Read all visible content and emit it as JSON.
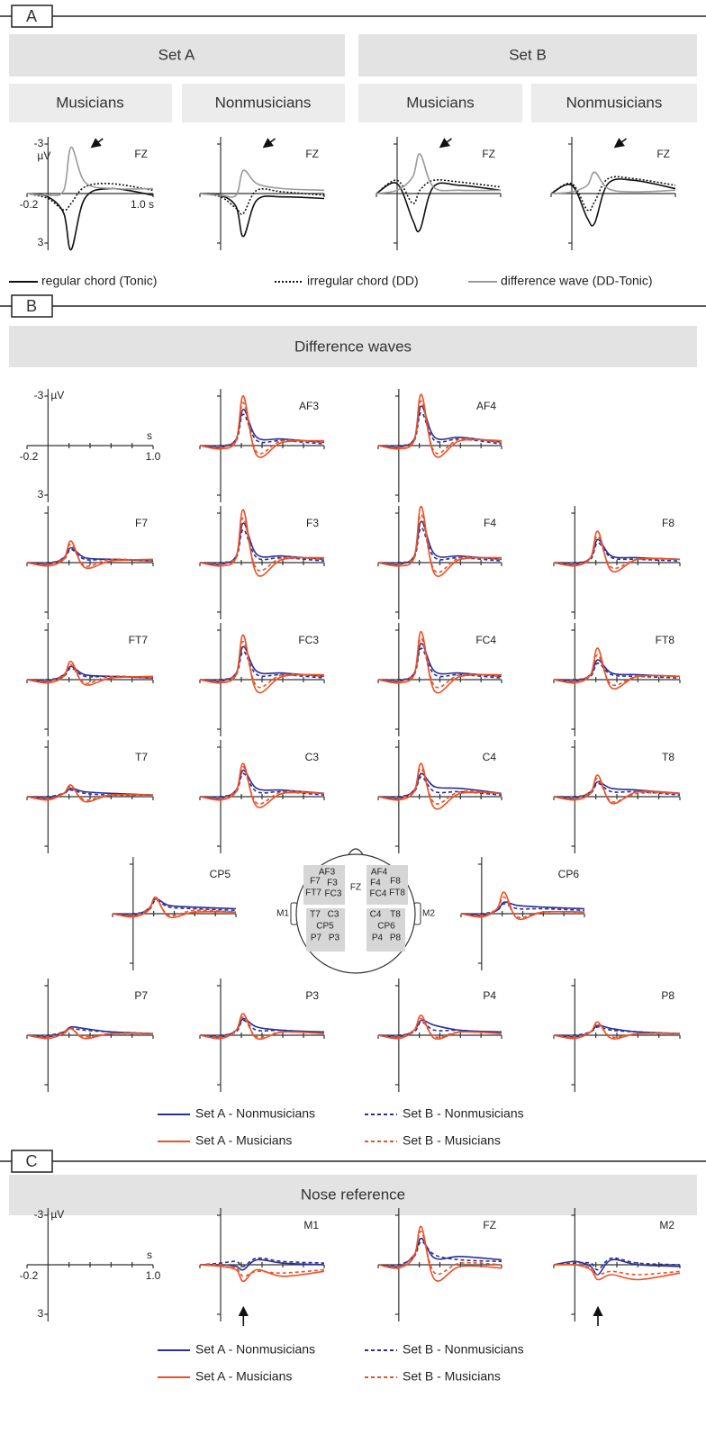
{
  "panel_a": {
    "label": "A",
    "set_titles": [
      "Set A",
      "Set B"
    ],
    "group_titles": [
      "Musicians",
      "Nonmusicians",
      "Musicians",
      "Nonmusicians"
    ],
    "x": [
      -0.2,
      0,
      0.15,
      0.22,
      0.35,
      0.6,
      1.0
    ],
    "xlim": [
      -0.2,
      1.0
    ],
    "ylim": [
      -3,
      3
    ],
    "xticks": [
      -0.2,
      {
        "value": 1.0,
        "label": "1.0 s"
      }
    ],
    "yticks": [
      -3,
      3
    ],
    "y_unit": "µV",
    "series": [
      {
        "name": "regular chord (Tonic)",
        "color": "#111111",
        "dash": "solid"
      },
      {
        "name": "irregular chord (DD)",
        "color": "#111111",
        "dash": "dotted"
      },
      {
        "name": "difference wave (DD-Tonic)",
        "color": "#9a9a9a",
        "dash": "solid"
      }
    ],
    "plots": [
      {
        "label": "FZ",
        "values": [
          [
            0,
            0.2,
            1.2,
            3.4,
            0.3,
            -0.3,
            0.1
          ],
          [
            0,
            0.3,
            1.0,
            0.6,
            -0.4,
            -0.6,
            -0.2
          ],
          [
            0,
            0.1,
            -0.2,
            -2.8,
            -0.7,
            -0.3,
            -0.3
          ]
        ]
      },
      {
        "label": "FZ",
        "values": [
          [
            0,
            0.1,
            0.8,
            2.6,
            0.4,
            0.2,
            0.3
          ],
          [
            0,
            0.2,
            0.9,
            1.2,
            -0.2,
            -0.1,
            0.1
          ],
          [
            0,
            0.1,
            0.1,
            -1.4,
            -0.6,
            -0.3,
            -0.2
          ]
        ]
      },
      {
        "label": "FZ",
        "values": [
          [
            0,
            -0.6,
            1.6,
            2.2,
            -0.4,
            -0.5,
            -0.2
          ],
          [
            0,
            -0.8,
            0.6,
            -0.2,
            -0.8,
            -0.7,
            -0.4
          ],
          [
            0,
            -0.2,
            -1.0,
            -2.4,
            -0.4,
            -0.2,
            -0.2
          ]
        ]
      },
      {
        "label": "FZ",
        "values": [
          [
            0,
            -0.5,
            1.5,
            1.8,
            -0.6,
            -0.8,
            -0.3
          ],
          [
            0,
            -0.6,
            1.0,
            0.5,
            -0.9,
            -0.9,
            -0.5
          ],
          [
            0,
            -0.1,
            -0.5,
            -1.3,
            -0.3,
            -0.1,
            -0.2
          ]
        ]
      }
    ]
  },
  "panel_b": {
    "label": "B",
    "title": "Difference waves",
    "x": [
      -0.2,
      0,
      0.15,
      0.22,
      0.35,
      0.6,
      1.0
    ],
    "xlim": [
      -0.2,
      1.0
    ],
    "ylim": [
      -3,
      3
    ],
    "xticks": [
      -0.2,
      {
        "value": 1.0,
        "label": "1.0"
      }
    ],
    "minor_xticks": [
      0.2,
      0.4,
      0.6,
      0.8
    ],
    "yticks": [
      -3,
      3
    ],
    "y_unit": "µV",
    "x_unit": "s",
    "series": [
      {
        "name": "Set A - Nonmusicians",
        "color": "#2a2f92",
        "dash": "solid"
      },
      {
        "name": "Set B - Nonmusicians",
        "color": "#2a2f92",
        "dash": "dashed"
      },
      {
        "name": "Set A - Musicians",
        "color": "#ec5128",
        "dash": "solid"
      },
      {
        "name": "Set B - Musicians",
        "color": "#ec5128",
        "dash": "dashed"
      }
    ],
    "plots": [
      {
        "label": "AF3",
        "values": [
          [
            0,
            0.1,
            -0.4,
            -2.2,
            -0.5,
            -0.4,
            -0.2
          ],
          [
            0,
            0,
            -0.3,
            -1.9,
            -0.3,
            -0.3,
            -0.1
          ],
          [
            0,
            0.2,
            -0.3,
            -3.0,
            0.6,
            -0.2,
            -0.3
          ],
          [
            0,
            0.1,
            -0.4,
            -2.6,
            0.4,
            -0.3,
            -0.2
          ]
        ]
      },
      {
        "label": "AF4",
        "values": [
          [
            0,
            0.1,
            -0.4,
            -2.4,
            -0.5,
            -0.5,
            -0.2
          ],
          [
            0,
            0,
            -0.3,
            -2.0,
            -0.3,
            -0.4,
            -0.1
          ],
          [
            0,
            0.2,
            -0.3,
            -3.1,
            0.6,
            -0.3,
            -0.3
          ],
          [
            0,
            0.1,
            -0.4,
            -2.7,
            0.4,
            -0.4,
            -0.2
          ]
        ]
      },
      {
        "label": "F7",
        "values": [
          [
            0,
            0.1,
            -0.3,
            -0.9,
            -0.3,
            -0.2,
            -0.1
          ],
          [
            0,
            0,
            -0.2,
            -0.8,
            -0.2,
            -0.2,
            -0.1
          ],
          [
            0,
            0.2,
            -0.2,
            -1.3,
            0.3,
            -0.1,
            -0.2
          ],
          [
            0,
            0.1,
            -0.3,
            -1.1,
            0.2,
            -0.2,
            -0.1
          ]
        ]
      },
      {
        "label": "F3",
        "values": [
          [
            0,
            0.1,
            -0.4,
            -2.4,
            -0.5,
            -0.4,
            -0.2
          ],
          [
            0,
            0,
            -0.3,
            -2.0,
            -0.3,
            -0.3,
            -0.1
          ],
          [
            0,
            0.2,
            -0.3,
            -3.2,
            0.7,
            -0.2,
            -0.3
          ],
          [
            0,
            0.1,
            -0.4,
            -2.7,
            0.4,
            -0.3,
            -0.2
          ]
        ]
      },
      {
        "label": "F4",
        "values": [
          [
            0,
            0.1,
            -0.4,
            -2.5,
            -0.5,
            -0.4,
            -0.2
          ],
          [
            0,
            0,
            -0.3,
            -2.1,
            -0.3,
            -0.3,
            -0.1
          ],
          [
            0,
            0.2,
            -0.3,
            -3.4,
            0.7,
            -0.2,
            -0.3
          ],
          [
            0,
            0.1,
            -0.4,
            -2.9,
            0.5,
            -0.3,
            -0.2
          ]
        ]
      },
      {
        "label": "F8",
        "values": [
          [
            0,
            0.1,
            -0.3,
            -1.4,
            -0.4,
            -0.3,
            -0.2
          ],
          [
            0,
            0,
            -0.2,
            -1.2,
            -0.3,
            -0.2,
            -0.1
          ],
          [
            0,
            0.2,
            -0.3,
            -1.9,
            0.5,
            -0.2,
            -0.2
          ],
          [
            0,
            0.1,
            -0.3,
            -1.6,
            0.3,
            -0.2,
            -0.2
          ]
        ]
      },
      {
        "label": "FT7",
        "values": [
          [
            0,
            0.1,
            -0.3,
            -0.8,
            -0.3,
            -0.2,
            -0.1
          ],
          [
            0,
            0,
            -0.2,
            -0.7,
            -0.2,
            -0.2,
            -0.1
          ],
          [
            0,
            0.2,
            -0.2,
            -1.1,
            0.3,
            -0.1,
            -0.2
          ],
          [
            0,
            0.1,
            -0.3,
            -0.9,
            0.2,
            -0.2,
            -0.1
          ]
        ]
      },
      {
        "label": "FC3",
        "values": [
          [
            0,
            0.1,
            -0.4,
            -2.0,
            -0.5,
            -0.4,
            -0.2
          ],
          [
            0,
            0,
            -0.3,
            -1.7,
            -0.3,
            -0.3,
            -0.1
          ],
          [
            0,
            0.2,
            -0.3,
            -2.7,
            0.7,
            -0.2,
            -0.3
          ],
          [
            0,
            0.1,
            -0.4,
            -2.3,
            0.4,
            -0.3,
            -0.2
          ]
        ]
      },
      {
        "label": "FC4",
        "values": [
          [
            0,
            0.1,
            -0.4,
            -2.2,
            -0.5,
            -0.4,
            -0.2
          ],
          [
            0,
            0,
            -0.3,
            -1.9,
            -0.3,
            -0.3,
            -0.1
          ],
          [
            0,
            0.2,
            -0.3,
            -2.9,
            0.7,
            -0.2,
            -0.3
          ],
          [
            0,
            0.1,
            -0.4,
            -2.5,
            0.4,
            -0.3,
            -0.2
          ]
        ]
      },
      {
        "label": "FT8",
        "values": [
          [
            0,
            0.1,
            -0.3,
            -1.2,
            -0.4,
            -0.3,
            -0.2
          ],
          [
            0,
            0,
            -0.2,
            -1.0,
            -0.3,
            -0.2,
            -0.1
          ],
          [
            0,
            0.2,
            -0.3,
            -1.9,
            0.5,
            -0.2,
            -0.2
          ],
          [
            0,
            0.1,
            -0.3,
            -1.5,
            0.3,
            -0.2,
            -0.2
          ]
        ]
      },
      {
        "label": "T7",
        "values": [
          [
            0,
            0.1,
            -0.2,
            -0.5,
            -0.3,
            -0.2,
            -0.1
          ],
          [
            0,
            0,
            -0.2,
            -0.4,
            -0.2,
            -0.1,
            -0.1
          ],
          [
            0,
            0.2,
            -0.2,
            -0.7,
            0.3,
            -0.1,
            -0.1
          ],
          [
            0,
            0.1,
            -0.2,
            -0.6,
            0.2,
            -0.1,
            -0.1
          ]
        ]
      },
      {
        "label": "C3",
        "values": [
          [
            0,
            0.1,
            -0.4,
            -1.6,
            -0.5,
            -0.4,
            -0.2
          ],
          [
            0,
            0,
            -0.3,
            -1.4,
            -0.3,
            -0.3,
            -0.1
          ],
          [
            0,
            0.2,
            -0.3,
            -2.0,
            0.6,
            -0.2,
            -0.2
          ],
          [
            0,
            0.1,
            -0.4,
            -1.8,
            0.4,
            -0.3,
            -0.2
          ]
        ]
      },
      {
        "label": "C4",
        "values": [
          [
            0,
            0.1,
            -0.4,
            -1.4,
            -0.6,
            -0.5,
            -0.2
          ],
          [
            0,
            0,
            -0.3,
            -1.2,
            -0.3,
            -0.3,
            -0.1
          ],
          [
            0,
            0.2,
            -0.3,
            -2.0,
            0.7,
            -0.2,
            -0.2
          ],
          [
            0,
            0.1,
            -0.4,
            -1.7,
            0.4,
            -0.3,
            -0.2
          ]
        ]
      },
      {
        "label": "T8",
        "values": [
          [
            0,
            0.1,
            -0.3,
            -0.9,
            -0.5,
            -0.4,
            -0.2
          ],
          [
            0,
            0,
            -0.2,
            -0.8,
            -0.3,
            -0.3,
            -0.1
          ],
          [
            0,
            0.2,
            -0.2,
            -1.3,
            0.4,
            -0.3,
            -0.2
          ],
          [
            0,
            0.1,
            -0.3,
            -1.1,
            0.3,
            -0.2,
            -0.2
          ]
        ]
      },
      {
        "label": "CP5",
        "values": [
          [
            0,
            0.1,
            -0.3,
            -0.9,
            -0.5,
            -0.4,
            -0.3
          ],
          [
            0,
            0,
            -0.2,
            -0.8,
            -0.4,
            -0.3,
            -0.2
          ],
          [
            0,
            0.2,
            -0.2,
            -1.0,
            0.2,
            -0.1,
            -0.1
          ],
          [
            0,
            0.1,
            -0.3,
            -0.9,
            0.1,
            -0.2,
            -0.1
          ]
        ]
      },
      {
        "label": "CP6",
        "values": [
          [
            0,
            0.1,
            -0.2,
            -0.7,
            -0.5,
            -0.4,
            -0.3
          ],
          [
            0,
            0,
            -0.2,
            -0.6,
            -0.3,
            -0.3,
            -0.2
          ],
          [
            0,
            0.2,
            -0.3,
            -1.3,
            0.3,
            -0.1,
            -0.1
          ],
          [
            0,
            0.1,
            -0.3,
            -1.0,
            0.2,
            -0.1,
            -0.1
          ]
        ]
      },
      {
        "label": "P7",
        "values": [
          [
            0,
            0.1,
            -0.2,
            -0.5,
            -0.4,
            -0.2,
            -0.1
          ],
          [
            0,
            0,
            -0.2,
            -0.4,
            -0.3,
            -0.2,
            -0.1
          ],
          [
            0,
            0.2,
            -0.1,
            -0.4,
            0.2,
            -0.1,
            -0.1
          ],
          [
            0,
            0.1,
            -0.2,
            -0.4,
            0.1,
            -0.1,
            -0.1
          ]
        ]
      },
      {
        "label": "P3",
        "values": [
          [
            0,
            0.1,
            -0.3,
            -1.0,
            -0.5,
            -0.3,
            -0.2
          ],
          [
            0,
            0,
            -0.2,
            -0.9,
            -0.3,
            -0.3,
            -0.1
          ],
          [
            0,
            0.2,
            -0.3,
            -1.3,
            0.2,
            -0.2,
            -0.1
          ],
          [
            0,
            0.1,
            -0.3,
            -1.1,
            0.1,
            -0.2,
            -0.1
          ]
        ]
      },
      {
        "label": "P4",
        "values": [
          [
            0,
            0.1,
            -0.3,
            -0.9,
            -0.6,
            -0.3,
            -0.2
          ],
          [
            0,
            0,
            -0.2,
            -0.8,
            -0.3,
            -0.3,
            -0.1
          ],
          [
            0,
            0.2,
            -0.3,
            -1.2,
            0.2,
            -0.2,
            -0.1
          ],
          [
            0,
            0.1,
            -0.3,
            -1.0,
            0.1,
            -0.2,
            -0.1
          ]
        ]
      },
      {
        "label": "P8",
        "values": [
          [
            0,
            0.1,
            -0.2,
            -0.6,
            -0.4,
            -0.2,
            -0.1
          ],
          [
            0,
            0,
            -0.2,
            -0.5,
            -0.3,
            -0.2,
            -0.1
          ],
          [
            0,
            0.2,
            -0.2,
            -0.8,
            0.2,
            -0.1,
            -0.1
          ],
          [
            0,
            0.1,
            -0.2,
            -0.7,
            0.1,
            -0.1,
            -0.1
          ]
        ]
      }
    ],
    "head": {
      "left_labels": [
        "AF3",
        "F7",
        "F3",
        "FT7",
        "FC3",
        "T7",
        "C3",
        "CP5",
        "P7",
        "P3"
      ],
      "right_labels": [
        "AF4",
        "F4",
        "F8",
        "FC4",
        "FT8",
        "C4",
        "T8",
        "CP6",
        "P4",
        "P8"
      ],
      "center_label": "FZ",
      "mastoid_labels": [
        "M1",
        "M2"
      ]
    }
  },
  "panel_c": {
    "label": "C",
    "title": "Nose reference",
    "plots": [
      {
        "label": "M1",
        "values": [
          [
            0,
            0,
            0.1,
            0.3,
            -0.3,
            -0.1,
            0
          ],
          [
            0,
            -0.1,
            -0.2,
            0.1,
            -0.4,
            -0.2,
            -0.1
          ],
          [
            0,
            0.1,
            0.3,
            1.0,
            0.3,
            0.7,
            0.4
          ],
          [
            0,
            0,
            0.2,
            0.7,
            0.4,
            0.5,
            0.3
          ]
        ]
      },
      {
        "label": "FZ",
        "values": [
          [
            0,
            0.1,
            -0.6,
            -1.6,
            -0.4,
            -0.5,
            -0.3
          ],
          [
            0,
            0,
            -0.5,
            -1.4,
            -0.6,
            -0.3,
            -0.2
          ],
          [
            0,
            0.2,
            -0.5,
            -2.3,
            0.9,
            0.1,
            0.2
          ],
          [
            0,
            0.1,
            -0.6,
            -2.0,
            0.5,
            -0.1,
            0
          ]
        ]
      },
      {
        "label": "M2",
        "values": [
          [
            0,
            -0.2,
            0.1,
            0.6,
            -0.3,
            0,
            0.1
          ],
          [
            0,
            -0.1,
            -0.1,
            0.3,
            -0.4,
            -0.1,
            0
          ],
          [
            0,
            0,
            0.3,
            0.9,
            0.6,
            0.9,
            0.5
          ],
          [
            0,
            0,
            0.2,
            0.6,
            0.4,
            0.6,
            0.4
          ]
        ]
      }
    ]
  }
}
